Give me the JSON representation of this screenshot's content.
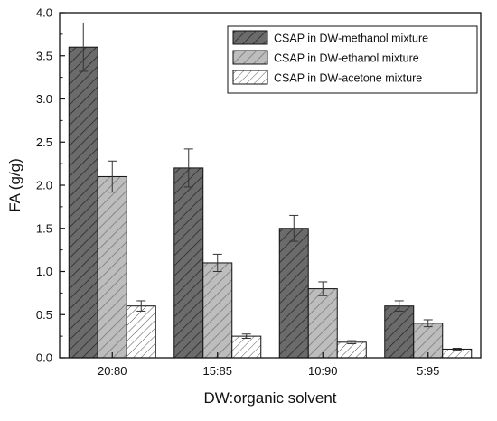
{
  "chart_data": {
    "type": "bar",
    "title": "",
    "xlabel": "DW:organic solvent",
    "ylabel": "FA (g/g)",
    "categories": [
      "20:80",
      "15:85",
      "10:90",
      "5:95"
    ],
    "series": [
      {
        "name": "CSAP in DW-methanol mixture",
        "values": [
          3.6,
          2.2,
          1.5,
          0.6
        ],
        "errors": [
          0.28,
          0.22,
          0.15,
          0.06
        ],
        "fill": "#6b6b6b",
        "pattern": "dense-hatch"
      },
      {
        "name": "CSAP in DW-ethanol mixture",
        "values": [
          2.1,
          1.1,
          0.8,
          0.4
        ],
        "errors": [
          0.18,
          0.1,
          0.08,
          0.04
        ],
        "fill": "#bdbdbd",
        "pattern": "dense-hatch"
      },
      {
        "name": "CSAP in DW-acetone mixture",
        "values": [
          0.6,
          0.25,
          0.18,
          0.1
        ],
        "errors": [
          0.06,
          0.025,
          0.018,
          0.01
        ],
        "fill": "#ffffff",
        "pattern": "sparse-hatch"
      }
    ],
    "ylim": [
      0,
      4.0
    ],
    "yticks": [
      "0.0",
      "0.5",
      "1.0",
      "1.5",
      "2.0",
      "2.5",
      "3.0",
      "3.5",
      "4.0"
    ],
    "ytick_values": [
      0,
      0.5,
      1.0,
      1.5,
      2.0,
      2.5,
      3.0,
      3.5,
      4.0
    ],
    "grid": false,
    "legend_position": "top-right"
  }
}
